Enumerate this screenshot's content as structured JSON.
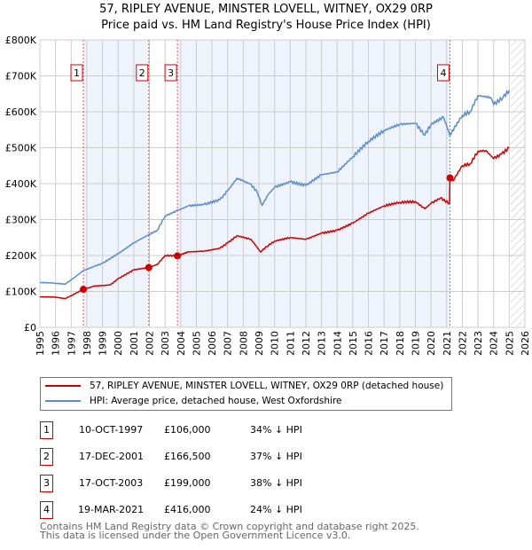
{
  "chart_data": {
    "type": "line",
    "title": "57, RIPLEY AVENUE, MINSTER LOVELL, WITNEY, OX29 0RP",
    "subtitle": "Price paid vs. HM Land Registry's House Price Index (HPI)",
    "xlim": [
      1995,
      2026
    ],
    "ylim": [
      0,
      800000
    ],
    "x_ticks": [
      "1995",
      "1996",
      "1997",
      "1998",
      "1999",
      "2000",
      "2001",
      "2002",
      "2003",
      "2004",
      "2005",
      "2006",
      "2007",
      "2008",
      "2009",
      "2010",
      "2011",
      "2012",
      "2013",
      "2014",
      "2015",
      "2016",
      "2017",
      "2018",
      "2019",
      "2020",
      "2021",
      "2022",
      "2023",
      "2024",
      "2025",
      "2026"
    ],
    "y_ticks": [
      {
        "v": 0,
        "label": "£0"
      },
      {
        "v": 100000,
        "label": "£100K"
      },
      {
        "v": 200000,
        "label": "£200K"
      },
      {
        "v": 300000,
        "label": "£300K"
      },
      {
        "v": 400000,
        "label": "£400K"
      },
      {
        "v": 500000,
        "label": "£500K"
      },
      {
        "v": 600000,
        "label": "£600K"
      },
      {
        "v": 700000,
        "label": "£700K"
      },
      {
        "v": 800000,
        "label": "£800K"
      }
    ],
    "series": [
      {
        "name": "57, RIPLEY AVENUE, MINSTER LOVELL, WITNEY, OX29 0RP (detached house)",
        "color": "#cc0000",
        "x": [
          1995,
          1996,
          1996.6,
          1997,
          1997.78,
          1998.5,
          1999.5,
          2000,
          2001,
          2001.96,
          2002.5,
          2003,
          2003.79,
          2004.5,
          2005.5,
          2006.5,
          2007,
          2007.6,
          2008.5,
          2009.1,
          2009.5,
          2010,
          2011,
          2012,
          2013,
          2014,
          2015,
          2016,
          2017,
          2018,
          2019,
          2019.6,
          2020,
          2020.6,
          2021.18,
          2021.21,
          2021.4,
          2022,
          2022.5,
          2023,
          2023.5,
          2024,
          2024.5,
          2025
        ],
        "y": [
          85000,
          84000,
          80000,
          88000,
          106000,
          115000,
          118000,
          135000,
          160000,
          166500,
          175000,
          200000,
          199000,
          210000,
          212000,
          220000,
          235000,
          255000,
          245000,
          210000,
          225000,
          240000,
          250000,
          245000,
          262000,
          270000,
          290000,
          318000,
          338000,
          348000,
          350000,
          330000,
          345000,
          360000,
          345000,
          416000,
          408000,
          450000,
          455000,
          490000,
          492000,
          470000,
          482000,
          500000
        ]
      },
      {
        "name": "HPI: Average price, detached house, West Oxfordshire",
        "color": "#5b8ccc",
        "x": [
          1995,
          1996,
          1996.6,
          1997,
          1997.78,
          1998.5,
          1999,
          2000,
          2001,
          2001.96,
          2002.5,
          2003,
          2003.79,
          2004.5,
          2005.5,
          2006.5,
          2007,
          2007.6,
          2008.5,
          2008.9,
          2009.2,
          2009.6,
          2010,
          2011,
          2012,
          2013,
          2014,
          2015,
          2016,
          2017,
          2018,
          2019,
          2019.6,
          2020,
          2020.8,
          2021.2,
          2022,
          2022.5,
          2023,
          2023.8,
          2024,
          2024.6,
          2025
        ],
        "y": [
          125000,
          123000,
          120000,
          132000,
          158000,
          170000,
          178000,
          205000,
          235000,
          258000,
          270000,
          310000,
          325000,
          338000,
          342000,
          355000,
          380000,
          415000,
          398000,
          375000,
          340000,
          370000,
          390000,
          405000,
          395000,
          425000,
          432000,
          475000,
          518000,
          548000,
          565000,
          568000,
          535000,
          565000,
          585000,
          535000,
          590000,
          600000,
          645000,
          640000,
          620000,
          640000,
          660000
        ]
      }
    ],
    "sales": [
      {
        "n": "1",
        "x": 1997.78,
        "date": "10-OCT-1997",
        "price": "£106,000",
        "value": 106000,
        "hpi": "34% ↓ HPI"
      },
      {
        "n": "2",
        "x": 2001.96,
        "date": "17-DEC-2001",
        "price": "£166,500",
        "value": 166500,
        "hpi": "37% ↓ HPI"
      },
      {
        "n": "3",
        "x": 2003.79,
        "date": "17-OCT-2003",
        "price": "£199,000",
        "value": 199000,
        "hpi": "38% ↓ HPI"
      },
      {
        "n": "4",
        "x": 2021.21,
        "date": "19-MAR-2021",
        "price": "£416,000",
        "value": 416000,
        "hpi": "24% ↓ HPI"
      }
    ],
    "legend_placement": "below",
    "grid": true
  },
  "footer": {
    "line1": "Contains HM Land Registry data © Crown copyright and database right 2025.",
    "line2": "This data is licensed under the Open Government Licence v3.0."
  }
}
